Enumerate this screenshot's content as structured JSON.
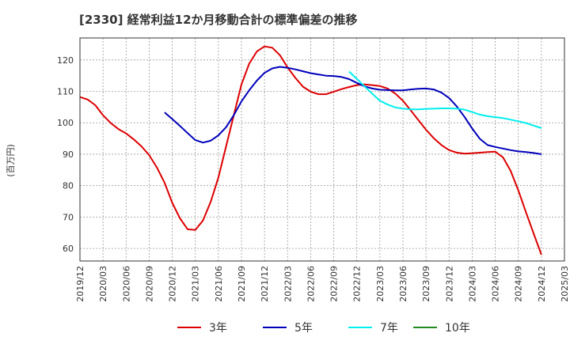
{
  "chart_data": {
    "type": "line",
    "title": "[2330]  経常利益12か月移動合計の標準偏差の推移",
    "ylabel": "(百万円)",
    "xlabel": "",
    "ylim": [
      56,
      127
    ],
    "yticks": [
      60,
      70,
      80,
      90,
      100,
      110,
      120
    ],
    "xlim": [
      "2019-12",
      "2025-03"
    ],
    "xticks": [
      "2019/12",
      "2020/03",
      "2020/06",
      "2020/09",
      "2020/12",
      "2021/03",
      "2021/06",
      "2021/09",
      "2021/12",
      "2022/03",
      "2022/06",
      "2022/09",
      "2022/12",
      "2023/03",
      "2023/06",
      "2023/09",
      "2023/12",
      "2024/03",
      "2024/06",
      "2024/09",
      "2024/12",
      "2025/03"
    ],
    "grid": true,
    "legend_position": "bottom",
    "series": [
      {
        "name": "3年",
        "color": "#dd0000",
        "points": [
          [
            "2019-12",
            108.2
          ],
          [
            "2020-01",
            107.4
          ],
          [
            "2020-02",
            105.6
          ],
          [
            "2020-03",
            102.4
          ],
          [
            "2020-04",
            99.9
          ],
          [
            "2020-05",
            98.0
          ],
          [
            "2020-06",
            96.6
          ],
          [
            "2020-07",
            94.7
          ],
          [
            "2020-08",
            92.5
          ],
          [
            "2020-09",
            89.7
          ],
          [
            "2020-10",
            85.8
          ],
          [
            "2020-11",
            80.9
          ],
          [
            "2020-12",
            74.5
          ],
          [
            "2021-01",
            69.6
          ],
          [
            "2021-02",
            66.1
          ],
          [
            "2021-03",
            65.9
          ],
          [
            "2021-04",
            68.9
          ],
          [
            "2021-05",
            74.8
          ],
          [
            "2021-06",
            82.6
          ],
          [
            "2021-07",
            92.5
          ],
          [
            "2021-08",
            102.4
          ],
          [
            "2021-09",
            112.2
          ],
          [
            "2021-10",
            118.8
          ],
          [
            "2021-11",
            122.7
          ],
          [
            "2021-12",
            124.3
          ],
          [
            "2021-13",
            123.9
          ],
          [
            "2022-02",
            121.5
          ],
          [
            "2022-03",
            117.6
          ],
          [
            "2022-04",
            114.3
          ],
          [
            "2022-05",
            111.5
          ],
          [
            "2022-06",
            109.9
          ],
          [
            "2022-07",
            109.1
          ],
          [
            "2022-08",
            109.1
          ],
          [
            "2022-09",
            109.9
          ],
          [
            "2022-10",
            110.7
          ],
          [
            "2022-11",
            111.4
          ],
          [
            "2022-12",
            112.0
          ],
          [
            "2022-13",
            112.2
          ],
          [
            "2023-02",
            112.0
          ],
          [
            "2023-03",
            111.7
          ],
          [
            "2023-04",
            110.9
          ],
          [
            "2023-05",
            109.3
          ],
          [
            "2023-06",
            107.0
          ],
          [
            "2023-07",
            104.0
          ],
          [
            "2023-08",
            100.9
          ],
          [
            "2023-09",
            97.8
          ],
          [
            "2023-10",
            95.1
          ],
          [
            "2023-11",
            92.9
          ],
          [
            "2023-12",
            91.3
          ],
          [
            "2023-13",
            90.5
          ],
          [
            "2024-02",
            90.2
          ],
          [
            "2024-03",
            90.3
          ],
          [
            "2024-04",
            90.5
          ],
          [
            "2024-05",
            90.7
          ],
          [
            "2024-06",
            90.8
          ],
          [
            "2024-07",
            89.0
          ],
          [
            "2024-08",
            84.7
          ],
          [
            "2024-09",
            78.5
          ],
          [
            "2024-10",
            71.5
          ],
          [
            "2024-11",
            64.7
          ],
          [
            "2024-12",
            58.0
          ]
        ]
      },
      {
        "name": "5年",
        "color": "#0000bb",
        "points": [
          [
            "2020-11",
            103.3
          ],
          [
            "2020-12",
            101.2
          ],
          [
            "2021-01",
            99.0
          ],
          [
            "2021-02",
            96.7
          ],
          [
            "2021-03",
            94.5
          ],
          [
            "2021-04",
            93.7
          ],
          [
            "2021-05",
            94.3
          ],
          [
            "2021-06",
            96.0
          ],
          [
            "2021-07",
            98.6
          ],
          [
            "2021-08",
            102.4
          ],
          [
            "2021-09",
            106.8
          ],
          [
            "2021-10",
            110.3
          ],
          [
            "2021-11",
            113.4
          ],
          [
            "2021-12",
            115.9
          ],
          [
            "2021-13",
            117.3
          ],
          [
            "2022-02",
            117.8
          ],
          [
            "2022-03",
            117.5
          ],
          [
            "2022-04",
            117.0
          ],
          [
            "2022-05",
            116.4
          ],
          [
            "2022-06",
            115.8
          ],
          [
            "2022-07",
            115.4
          ],
          [
            "2022-08",
            115.0
          ],
          [
            "2022-09",
            114.9
          ],
          [
            "2022-10",
            114.6
          ],
          [
            "2022-11",
            113.9
          ],
          [
            "2022-12",
            112.7
          ],
          [
            "2022-13",
            111.6
          ],
          [
            "2023-02",
            110.9
          ],
          [
            "2023-03",
            110.5
          ],
          [
            "2023-04",
            110.4
          ],
          [
            "2023-05",
            110.3
          ],
          [
            "2023-06",
            110.3
          ],
          [
            "2023-07",
            110.6
          ],
          [
            "2023-08",
            110.8
          ],
          [
            "2023-09",
            110.9
          ],
          [
            "2023-10",
            110.6
          ],
          [
            "2023-11",
            109.6
          ],
          [
            "2023-12",
            107.9
          ],
          [
            "2023-13",
            105.2
          ],
          [
            "2024-02",
            101.9
          ],
          [
            "2024-03",
            98.2
          ],
          [
            "2024-04",
            94.9
          ],
          [
            "2024-05",
            92.9
          ],
          [
            "2024-06",
            92.3
          ],
          [
            "2024-07",
            91.8
          ],
          [
            "2024-08",
            91.3
          ],
          [
            "2024-09",
            90.9
          ],
          [
            "2024-10",
            90.7
          ],
          [
            "2024-11",
            90.4
          ],
          [
            "2024-12",
            90.0
          ]
        ]
      },
      {
        "name": "7年",
        "color": "#00eeee",
        "points": [
          [
            "2022-11",
            116.3
          ],
          [
            "2022-12",
            114.0
          ],
          [
            "2022-13",
            111.6
          ],
          [
            "2023-02",
            109.3
          ],
          [
            "2023-03",
            107.0
          ],
          [
            "2023-04",
            105.8
          ],
          [
            "2023-05",
            104.9
          ],
          [
            "2023-06",
            104.5
          ],
          [
            "2023-07",
            104.3
          ],
          [
            "2023-08",
            104.3
          ],
          [
            "2023-09",
            104.4
          ],
          [
            "2023-10",
            104.5
          ],
          [
            "2023-11",
            104.6
          ],
          [
            "2023-12",
            104.6
          ],
          [
            "2023-13",
            104.5
          ],
          [
            "2024-02",
            104.2
          ],
          [
            "2024-03",
            103.4
          ],
          [
            "2024-04",
            102.6
          ],
          [
            "2024-05",
            102.1
          ],
          [
            "2024-06",
            101.8
          ],
          [
            "2024-07",
            101.5
          ],
          [
            "2024-08",
            101.0
          ],
          [
            "2024-09",
            100.5
          ],
          [
            "2024-10",
            99.9
          ],
          [
            "2024-11",
            99.1
          ],
          [
            "2024-12",
            98.3
          ]
        ]
      },
      {
        "name": "10年",
        "color": "#228b22",
        "points": []
      }
    ]
  }
}
